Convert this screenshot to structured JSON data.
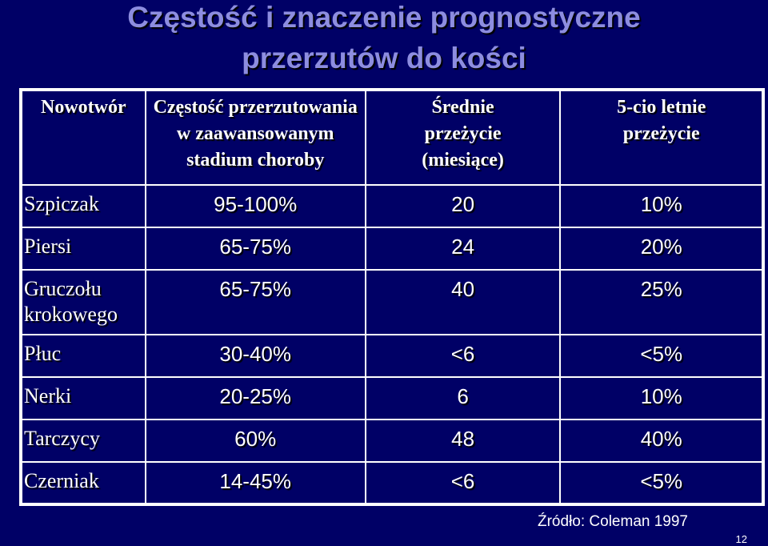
{
  "title": {
    "line1": "Częstość i znaczenie prognostyczne",
    "line2": "przerzutów do kości"
  },
  "table": {
    "headers": [
      [
        "Nowotwór"
      ],
      [
        "Częstość przerzutowania",
        "w zaawansowanym",
        "stadium choroby"
      ],
      [
        "Średnie",
        "przeżycie",
        "(miesiące)"
      ],
      [
        "5-cio letnie",
        "przeżycie"
      ]
    ],
    "rows": [
      {
        "name": [
          "Szpiczak"
        ],
        "freq": "95-100%",
        "median": "20",
        "five_year": "10%"
      },
      {
        "name": [
          "Piersi"
        ],
        "freq": "65-75%",
        "median": "24",
        "five_year": "20%"
      },
      {
        "name": [
          "Gruczołu",
          "krokowego"
        ],
        "freq": "65-75%",
        "median": "40",
        "five_year": "25%"
      },
      {
        "name": [
          "Płuc"
        ],
        "freq": "30-40%",
        "median": "<6",
        "five_year": "<5%"
      },
      {
        "name": [
          "Nerki"
        ],
        "freq": "20-25%",
        "median": "6",
        "five_year": "10%"
      },
      {
        "name": [
          "Tarczycy"
        ],
        "freq": "60%",
        "median": "48",
        "five_year": "40%"
      },
      {
        "name": [
          "Czerniak"
        ],
        "freq": "14-45%",
        "median": "<6",
        "five_year": "<5%"
      }
    ]
  },
  "source": "Źródło: Coleman 1997",
  "page_number": "12",
  "colors": {
    "background": "#000066",
    "title": "#8d8de0",
    "text": "#ffffff",
    "border": "#ffffff"
  }
}
